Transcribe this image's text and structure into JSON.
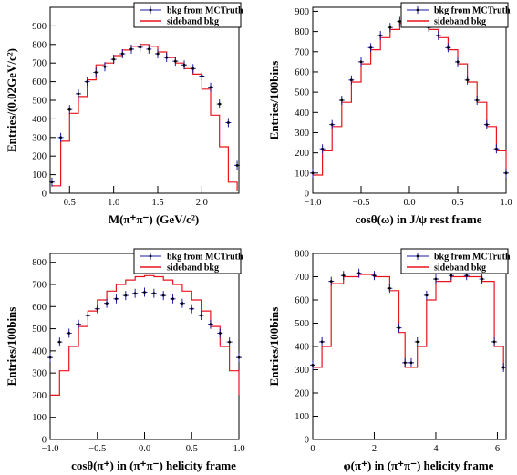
{
  "colors": {
    "mc": "#1a1aa6",
    "sideband": "#e8141e",
    "frame": "#000000"
  },
  "chart_data": [
    {
      "type": "histogram",
      "xlabel": "M(π⁺π⁻) (GeV/c²)",
      "ylabel": "Entries/(0.02GeV/c²)",
      "xlim": [
        0.28,
        2.42
      ],
      "ylim": [
        0,
        1000
      ],
      "xticks": [
        0.5,
        1.0,
        1.5,
        2.0
      ],
      "xtick_labels": [
        "0.5",
        "1.0",
        "1.5",
        "2.0"
      ],
      "yticks": [
        0,
        100,
        200,
        300,
        400,
        500,
        600,
        700,
        800,
        900
      ],
      "ytick_labels": [
        "0",
        "100",
        "200",
        "300",
        "400",
        "500",
        "600",
        "700",
        "800",
        "900"
      ],
      "legend": {
        "position": "top-right",
        "entries": [
          "bkg from MCTruth",
          "sideband bkg"
        ]
      },
      "series": [
        {
          "name": "bkg from MCTruth",
          "style": "points",
          "x": [
            0.3,
            0.4,
            0.5,
            0.6,
            0.7,
            0.8,
            0.9,
            1.0,
            1.1,
            1.2,
            1.3,
            1.4,
            1.5,
            1.6,
            1.7,
            1.8,
            1.9,
            2.0,
            2.1,
            2.2,
            2.3,
            2.4
          ],
          "y": [
            60,
            300,
            450,
            535,
            600,
            650,
            680,
            720,
            750,
            775,
            785,
            775,
            750,
            730,
            710,
            690,
            670,
            630,
            570,
            480,
            380,
            150
          ]
        },
        {
          "name": "sideband bkg",
          "style": "step",
          "x": [
            0.3,
            0.4,
            0.5,
            0.6,
            0.7,
            0.8,
            0.9,
            1.0,
            1.1,
            1.2,
            1.3,
            1.4,
            1.5,
            1.6,
            1.7,
            1.8,
            1.9,
            2.0,
            2.1,
            2.2,
            2.3,
            2.4
          ],
          "y": [
            40,
            280,
            430,
            520,
            610,
            690,
            700,
            740,
            770,
            790,
            800,
            790,
            760,
            730,
            700,
            670,
            640,
            560,
            420,
            250,
            60,
            10
          ]
        }
      ]
    },
    {
      "type": "histogram",
      "xlabel": "cosθ(ω) in J/ψ rest frame",
      "ylabel": "Entries/100bins",
      "xlim": [
        -1.0,
        1.0
      ],
      "ylim": [
        0,
        920
      ],
      "xticks": [
        -1.0,
        -0.5,
        0.0,
        0.5,
        1.0
      ],
      "xtick_labels": [
        "−1.0",
        "−0.5",
        "0.0",
        "0.5",
        "1.0"
      ],
      "yticks": [
        0,
        100,
        200,
        300,
        400,
        500,
        600,
        700,
        800,
        900
      ],
      "ytick_labels": [
        "0",
        "100",
        "200",
        "300",
        "400",
        "500",
        "600",
        "700",
        "800",
        "900"
      ],
      "legend": {
        "position": "top-right",
        "entries": [
          "bkg from MCTruth",
          "sideband bkg"
        ]
      },
      "series": [
        {
          "name": "bkg from MCTruth",
          "style": "points",
          "x": [
            -1.0,
            -0.9,
            -0.8,
            -0.7,
            -0.6,
            -0.5,
            -0.4,
            -0.3,
            -0.2,
            -0.1,
            0.0,
            0.1,
            0.2,
            0.3,
            0.4,
            0.5,
            0.6,
            0.7,
            0.8,
            0.9,
            1.0
          ],
          "y": [
            100,
            220,
            340,
            460,
            560,
            650,
            720,
            780,
            820,
            850,
            860,
            850,
            820,
            780,
            720,
            650,
            560,
            460,
            340,
            220,
            100
          ]
        },
        {
          "name": "sideband bkg",
          "style": "step",
          "x": [
            -1.0,
            -0.9,
            -0.8,
            -0.7,
            -0.6,
            -0.5,
            -0.4,
            -0.3,
            -0.2,
            -0.1,
            0.0,
            0.1,
            0.2,
            0.3,
            0.4,
            0.5,
            0.6,
            0.7,
            0.8,
            0.9,
            1.0
          ],
          "y": [
            90,
            210,
            330,
            450,
            550,
            640,
            710,
            770,
            810,
            840,
            850,
            840,
            810,
            770,
            710,
            640,
            550,
            450,
            330,
            210,
            90
          ]
        }
      ]
    },
    {
      "type": "histogram",
      "xlabel": "cosθ(π⁺) in (π⁺π⁻) helicity frame",
      "ylabel": "Entries/100bins",
      "xlim": [
        -1.0,
        1.0
      ],
      "ylim": [
        0,
        840
      ],
      "xticks": [
        -1.0,
        -0.5,
        0.0,
        0.5,
        1.0
      ],
      "xtick_labels": [
        "−1.0",
        "−0.5",
        "0.0",
        "0.5",
        "1.0"
      ],
      "yticks": [
        0,
        100,
        200,
        300,
        400,
        500,
        600,
        700,
        800
      ],
      "ytick_labels": [
        "0",
        "100",
        "200",
        "300",
        "400",
        "500",
        "600",
        "700",
        "800"
      ],
      "legend": {
        "position": "top-right",
        "entries": [
          "bkg from MCTruth",
          "sideband bkg"
        ]
      },
      "series": [
        {
          "name": "bkg from MCTruth",
          "style": "points",
          "x": [
            -1.0,
            -0.9,
            -0.8,
            -0.7,
            -0.6,
            -0.5,
            -0.4,
            -0.3,
            -0.2,
            -0.1,
            0.0,
            0.1,
            0.2,
            0.3,
            0.4,
            0.5,
            0.6,
            0.7,
            0.8,
            0.9,
            1.0
          ],
          "y": [
            370,
            440,
            480,
            520,
            560,
            590,
            615,
            635,
            650,
            660,
            665,
            660,
            650,
            635,
            615,
            590,
            560,
            520,
            480,
            440,
            370
          ]
        },
        {
          "name": "sideband bkg",
          "style": "step",
          "x": [
            -1.0,
            -0.9,
            -0.8,
            -0.7,
            -0.6,
            -0.5,
            -0.4,
            -0.3,
            -0.2,
            -0.1,
            0.0,
            0.1,
            0.2,
            0.3,
            0.4,
            0.5,
            0.6,
            0.7,
            0.8,
            0.9,
            1.0
          ],
          "y": [
            200,
            310,
            420,
            510,
            580,
            630,
            670,
            700,
            720,
            735,
            740,
            735,
            720,
            700,
            670,
            630,
            580,
            510,
            420,
            310,
            200
          ]
        }
      ]
    },
    {
      "type": "histogram",
      "xlabel": "φ(π⁺) in (π⁺π⁻) helicity frame",
      "ylabel": "Entries/100bins",
      "xlim": [
        0,
        6.283
      ],
      "ylim": [
        0,
        800
      ],
      "xticks": [
        0,
        2,
        4,
        6
      ],
      "xtick_labels": [
        "0",
        "2",
        "4",
        "6"
      ],
      "yticks": [
        0,
        100,
        200,
        300,
        400,
        500,
        600,
        700,
        800
      ],
      "ytick_labels": [
        "0",
        "100",
        "200",
        "300",
        "400",
        "500",
        "600",
        "700",
        "800"
      ],
      "legend": {
        "position": "top-right",
        "entries": [
          "bkg from MCTruth",
          "sideband bkg"
        ]
      },
      "series": [
        {
          "name": "bkg from MCTruth",
          "style": "points",
          "x": [
            0.0,
            0.3,
            0.6,
            1.0,
            1.5,
            2.0,
            2.5,
            2.8,
            3.0,
            3.2,
            3.4,
            3.7,
            4.0,
            4.5,
            5.0,
            5.5,
            5.9,
            6.2
          ],
          "y": [
            320,
            420,
            680,
            705,
            715,
            705,
            650,
            480,
            330,
            330,
            420,
            620,
            690,
            705,
            705,
            690,
            420,
            310
          ]
        },
        {
          "name": "sideband bkg",
          "style": "step",
          "x": [
            0.0,
            0.3,
            0.6,
            1.0,
            1.5,
            2.0,
            2.5,
            2.8,
            3.0,
            3.2,
            3.4,
            3.7,
            4.0,
            4.5,
            5.0,
            5.5,
            5.9,
            6.2
          ],
          "y": [
            310,
            400,
            670,
            700,
            710,
            700,
            640,
            460,
            310,
            310,
            400,
            600,
            680,
            700,
            700,
            680,
            400,
            300
          ]
        }
      ]
    }
  ]
}
